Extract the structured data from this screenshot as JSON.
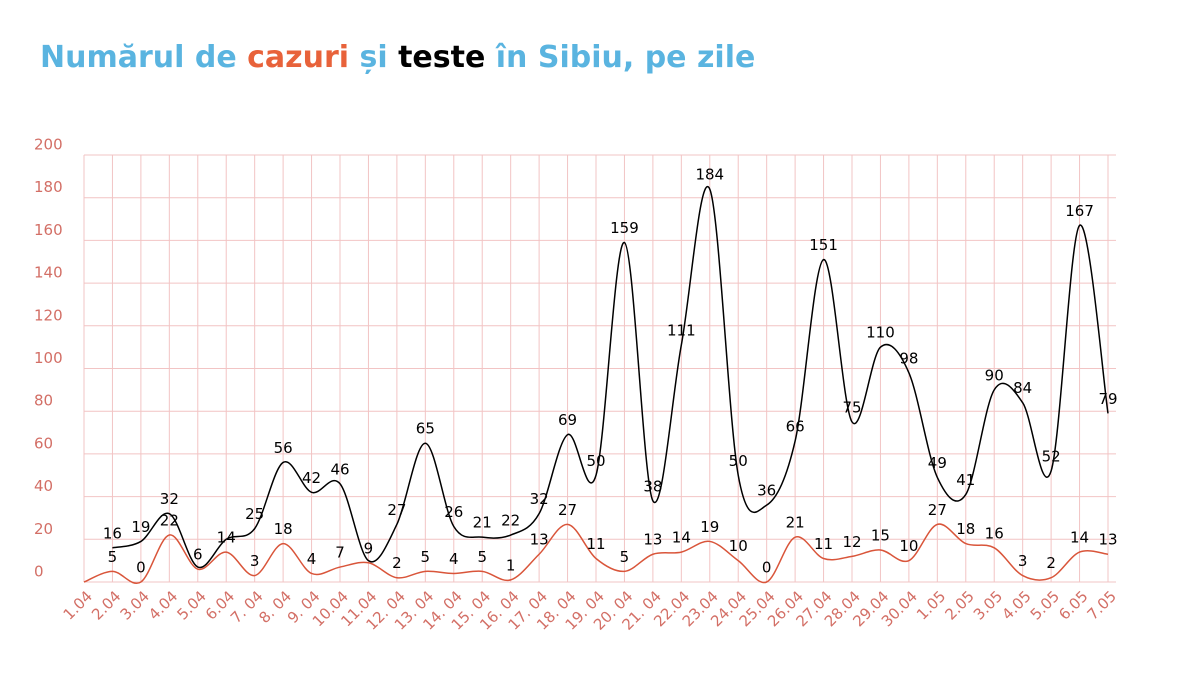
{
  "chart_data": {
    "type": "line",
    "title_parts": [
      {
        "text": "Numărul de ",
        "color": "#5ab4e0"
      },
      {
        "text": "cazuri",
        "color": "#e8623a"
      },
      {
        "text": " și ",
        "color": "#5ab4e0"
      },
      {
        "text": "teste",
        "color": "#000000"
      },
      {
        "text": " în Sibiu, pe zile",
        "color": "#5ab4e0"
      }
    ],
    "categories": [
      "1.04",
      "2.04",
      "3.04",
      "4.04",
      "5.04",
      "6.04",
      "7. 04",
      "8. 04",
      "9. 04",
      "10.04",
      "11.04",
      "12. 04",
      "13. 04",
      "14. 04",
      "15. 04",
      "16. 04",
      "17. 04",
      "18. 04",
      "19. 04",
      "20. 04",
      "21. 04",
      "22.04",
      "23.04",
      "24.04",
      "25.04",
      "26.04",
      "27.04",
      "28.04",
      "29.04",
      "30.04",
      "1.05",
      "2.05",
      "3.05",
      "4.05",
      "5.05",
      "6.05",
      "7.05"
    ],
    "series": [
      {
        "color": "#000000",
        "values": [
          null,
          16,
          19,
          32,
          7,
          20,
          25,
          56,
          42,
          46,
          10,
          27,
          65,
          26,
          21,
          22,
          32,
          69,
          50,
          159,
          38,
          111,
          184,
          50,
          36,
          66,
          151,
          75,
          110,
          98,
          49,
          41,
          90,
          84,
          52,
          167,
          79
        ],
        "value_labels": [
          null,
          "16",
          "19",
          "32",
          null,
          null,
          "25",
          "56",
          "42",
          "46",
          null,
          "27",
          "65",
          "26",
          "21",
          "22",
          "32",
          "69",
          "50",
          "159",
          "38",
          "111",
          "184",
          "50",
          "36",
          "66",
          "151",
          "75",
          "110",
          "98",
          "49",
          "41",
          "90",
          "84",
          "52",
          "167",
          "79"
        ]
      },
      {
        "color": "#d9553a",
        "values": [
          0,
          5,
          0,
          22,
          6,
          14,
          3,
          18,
          4,
          7,
          9,
          2,
          5,
          4,
          5,
          1,
          13,
          27,
          11,
          5,
          13,
          14,
          19,
          10,
          0,
          21,
          11,
          12,
          15,
          10,
          27,
          18,
          16,
          3,
          2,
          14,
          13
        ],
        "value_labels": [
          null,
          "5",
          "0",
          "22",
          "6",
          "14",
          "3",
          "18",
          "4",
          "7",
          "9",
          "2",
          "5",
          "4",
          "5",
          "1",
          "13",
          "27",
          "11",
          "5",
          "13",
          "14",
          "19",
          "10",
          "0",
          "21",
          "11",
          "12",
          "15",
          "10",
          "27",
          "18",
          "16",
          "3",
          "2",
          "14",
          "13"
        ]
      }
    ],
    "ylim": [
      0,
      200
    ],
    "yticks": [
      0,
      20,
      40,
      60,
      80,
      100,
      120,
      140,
      160,
      180,
      200
    ],
    "grid": true
  }
}
